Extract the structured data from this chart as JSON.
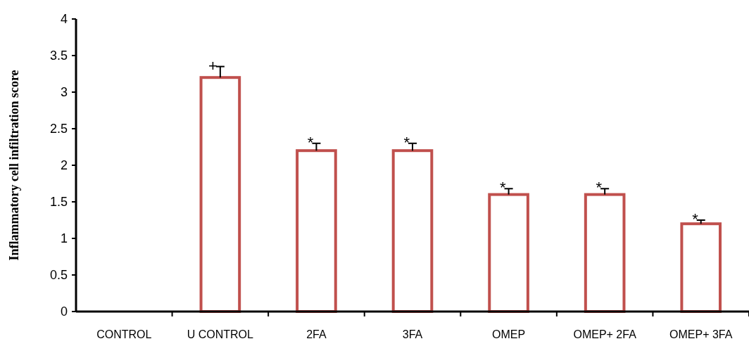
{
  "chart_data": {
    "type": "bar",
    "ylabel": "Inflammatory cell infiltration score",
    "categories": [
      "CONTROL",
      "U CONTROL",
      "2FA",
      "3FA",
      "OMEP",
      "OMEP+ 2FA",
      "OMEP+ 3FA"
    ],
    "series": [
      {
        "color": "#c0504d",
        "values": [
          0,
          3.2,
          2.2,
          2.2,
          1.6,
          1.6,
          1.2
        ],
        "errors": [
          null,
          0.15,
          0.1,
          0.1,
          0.08,
          0.08,
          0.05
        ]
      }
    ],
    "ylim": [
      0,
      4
    ],
    "yticks": [
      0,
      0.5,
      1,
      1.5,
      2,
      2.5,
      3,
      3.5,
      4
    ],
    "annotations": [
      {
        "text": "+",
        "x": "U CONTROL",
        "y": 3.35
      },
      {
        "text": "*",
        "x": "2FA",
        "y": 2.3
      },
      {
        "text": "*",
        "x": "3FA",
        "y": 2.3
      },
      {
        "text": "*",
        "x": "OMEP",
        "y": 1.68
      },
      {
        "text": "*",
        "x": "OMEP+ 2FA",
        "y": 1.68
      },
      {
        "text": "*",
        "x": "OMEP+ 3FA",
        "y": 1.25
      }
    ]
  }
}
